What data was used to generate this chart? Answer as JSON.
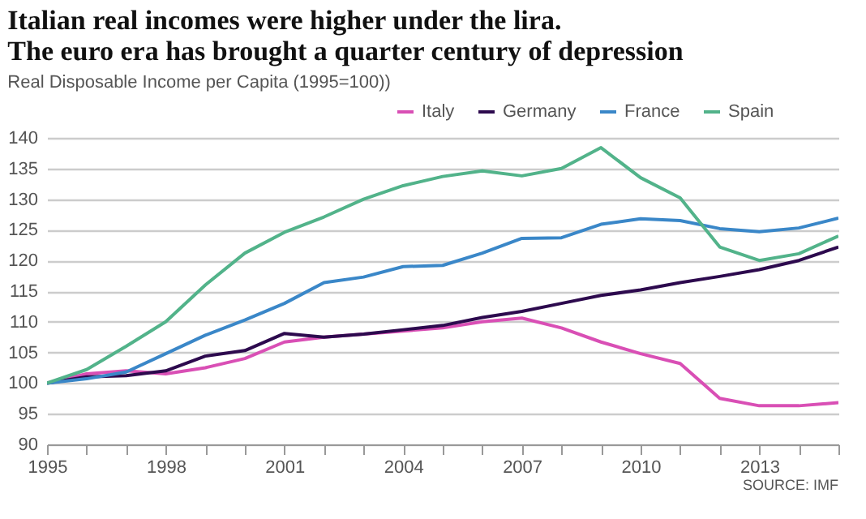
{
  "chart_data": {
    "type": "line",
    "title": "Italian real incomes were higher under the lira.\nThe euro era has brought a quarter century of depression",
    "subtitle": "Real Disposable Income per Capita (1995=100))",
    "x": [
      1995,
      1996,
      1997,
      1998,
      1999,
      2000,
      2001,
      2002,
      2003,
      2004,
      2005,
      2006,
      2007,
      2008,
      2009,
      2010,
      2011,
      2012,
      2013,
      2014,
      2015
    ],
    "series": [
      {
        "name": "Italy",
        "color": "#d94fb5",
        "values": [
          100,
          101.5,
          102,
          101.5,
          102.5,
          104,
          106.7,
          107.5,
          108,
          108.5,
          109,
          110,
          110.6,
          109,
          106.7,
          104.8,
          103.2,
          97.5,
          96.3,
          96.3,
          96.8
        ]
      },
      {
        "name": "Germany",
        "color": "#2d0a4e",
        "values": [
          100,
          101,
          101.2,
          102,
          104.4,
          105.3,
          108.1,
          107.5,
          108,
          108.7,
          109.4,
          110.7,
          111.7,
          113,
          114.3,
          115.2,
          116.4,
          117.4,
          118.5,
          120,
          122.2
        ]
      },
      {
        "name": "France",
        "color": "#3a87c8",
        "values": [
          100,
          100.7,
          101.8,
          104.8,
          107.8,
          110.3,
          113,
          116.4,
          117.3,
          119,
          119.2,
          121.2,
          123.6,
          123.7,
          125.9,
          126.8,
          126.5,
          125.2,
          124.7,
          125.3,
          126.9
        ]
      },
      {
        "name": "Spain",
        "color": "#52b38a",
        "values": [
          100,
          102.2,
          106,
          110,
          116,
          121.2,
          124.6,
          127.1,
          130,
          132.2,
          133.7,
          134.6,
          133.8,
          135,
          138.4,
          133.5,
          130.2,
          122.2,
          120,
          121.1,
          124
        ]
      }
    ],
    "xlim": [
      1995,
      2015
    ],
    "xticks": [
      1995,
      {
        "value": 1996,
        "label": null
      },
      {
        "value": 1997,
        "label": null
      },
      1998,
      {
        "value": 1999,
        "label": null
      },
      {
        "value": 2000,
        "label": null
      },
      2001,
      {
        "value": 2002,
        "label": null
      },
      {
        "value": 2003,
        "label": null
      },
      2004,
      {
        "value": 2005,
        "label": null
      },
      {
        "value": 2006,
        "label": null
      },
      2007,
      {
        "value": 2008,
        "label": null
      },
      {
        "value": 2009,
        "label": null
      },
      2010,
      {
        "value": 2011,
        "label": null
      },
      {
        "value": 2012,
        "label": null
      },
      2013,
      {
        "value": 2014,
        "label": null
      },
      {
        "value": 2015,
        "label": null
      }
    ],
    "ylim": [
      90,
      140
    ],
    "yticks": [
      90,
      95,
      100,
      105,
      110,
      115,
      120,
      125,
      130,
      135,
      140
    ],
    "grid": "y",
    "legend": "top right",
    "marker": "none",
    "line_style": "solid",
    "annotations": [
      "SOURCE: IMF"
    ]
  }
}
